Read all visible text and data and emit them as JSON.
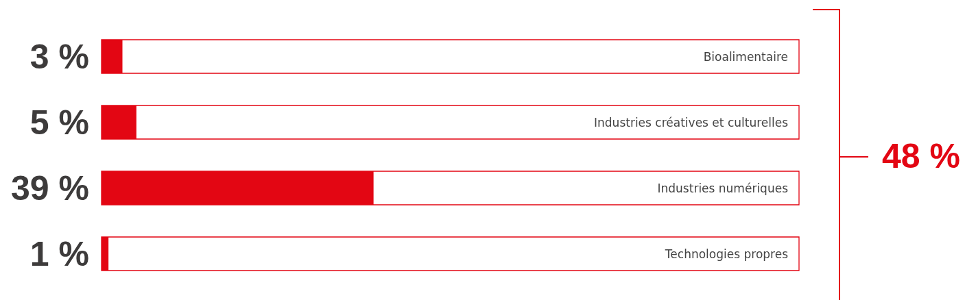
{
  "chart_data": {
    "type": "bar",
    "orientation": "horizontal",
    "categories": [
      "Bioalimentaire",
      "Industries créatives et culturelles",
      "Industries numériques",
      "Technologies propres"
    ],
    "values": [
      3,
      5,
      39,
      1
    ],
    "value_labels": [
      "3 %",
      "5 %",
      "39 %",
      "1 %"
    ],
    "color": "#e30613",
    "xlim": [
      0,
      100
    ],
    "annotations": [
      "48 %"
    ]
  }
}
